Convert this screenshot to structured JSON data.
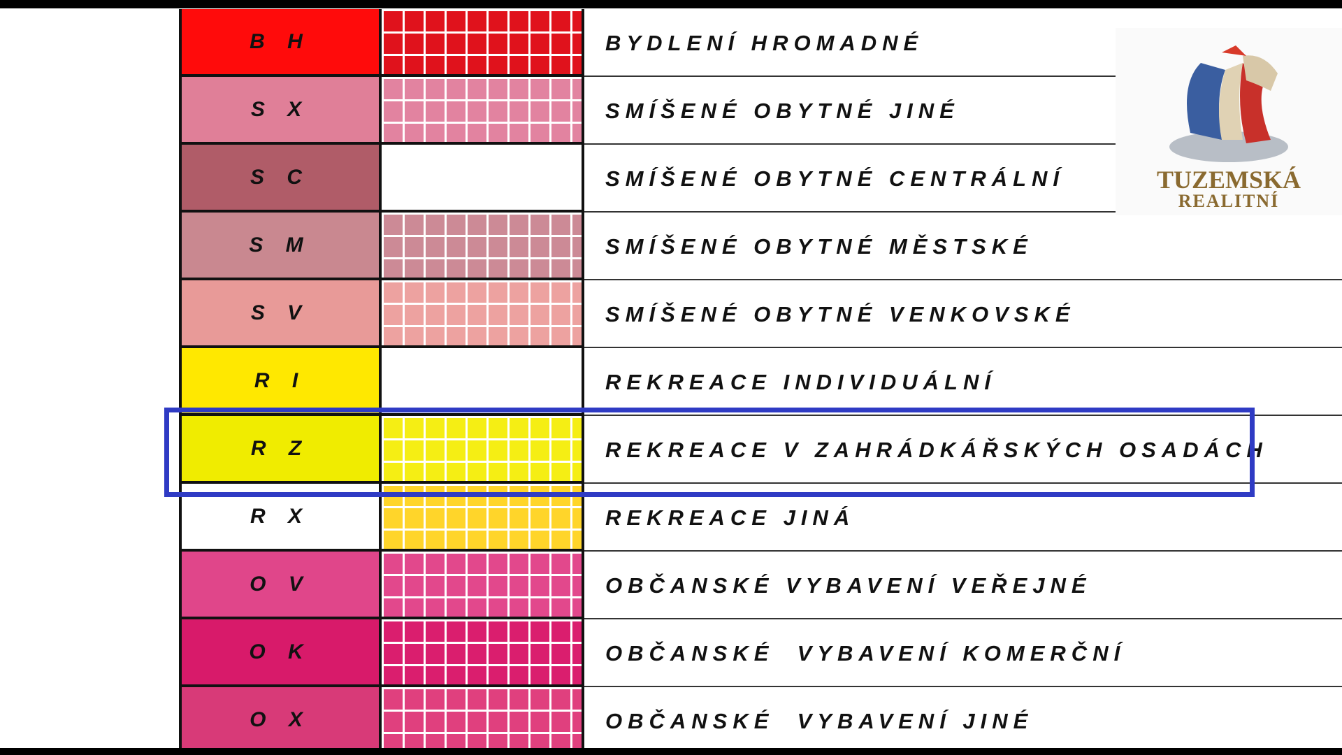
{
  "rows": [
    {
      "code": "B H",
      "label": "BYDLENÍ HROMADNÉ",
      "color": "#ff0b0b",
      "pattern": "#e0121c"
    },
    {
      "code": "S X",
      "label": "SMÍŠENÉ OBYTNÉ JINÉ",
      "color": "#e07f98",
      "pattern": "#e283a0"
    },
    {
      "code": "S C",
      "label": "SMÍŠENÉ OBYTNÉ CENTRÁLNÍ",
      "color": "#b05c68",
      "pattern": "#ffffff"
    },
    {
      "code": "S M",
      "label": "SMÍŠENÉ OBYTNÉ MĚSTSKÉ",
      "color": "#c98890",
      "pattern": "#cc8a96"
    },
    {
      "code": "S V",
      "label": "SMÍŠENÉ OBYTNÉ VENKOVSKÉ",
      "color": "#e89a98",
      "pattern": "#eda2a0"
    },
    {
      "code": "R I",
      "label": "REKREACE INDIVIDUÁLNÍ",
      "color": "#ffe800",
      "pattern": "#ffffff"
    },
    {
      "code": "R Z",
      "label": "REKREACE V ZAHRÁDKÁŘSKÝCH OSADÁCH",
      "color": "#f0ec00",
      "pattern": "#f5ee14"
    },
    {
      "code": "R X",
      "label": "REKREACE JINÁ",
      "color": "#ffffff",
      "pattern": "#ffd52a"
    },
    {
      "code": "O V",
      "label": "OBČANSKÉ VYBAVENÍ VEŘEJNÉ",
      "color": "#e0468a",
      "pattern": "#e2488c"
    },
    {
      "code": "O K",
      "label": "OBČANSKÉ  VYBAVENÍ KOMERČNÍ",
      "color": "#d81a6a",
      "pattern": "#da1e6e"
    },
    {
      "code": "O X",
      "label": "OBČANSKÉ  VYBAVENÍ JINÉ",
      "color": "#d83a78",
      "pattern": "#e0407e"
    }
  ],
  "highlight": {
    "row": "R Z",
    "color": "#2f3bc4"
  },
  "logo": {
    "line1": "TUZEMSKÁ",
    "line2": "REALITNÍ"
  }
}
